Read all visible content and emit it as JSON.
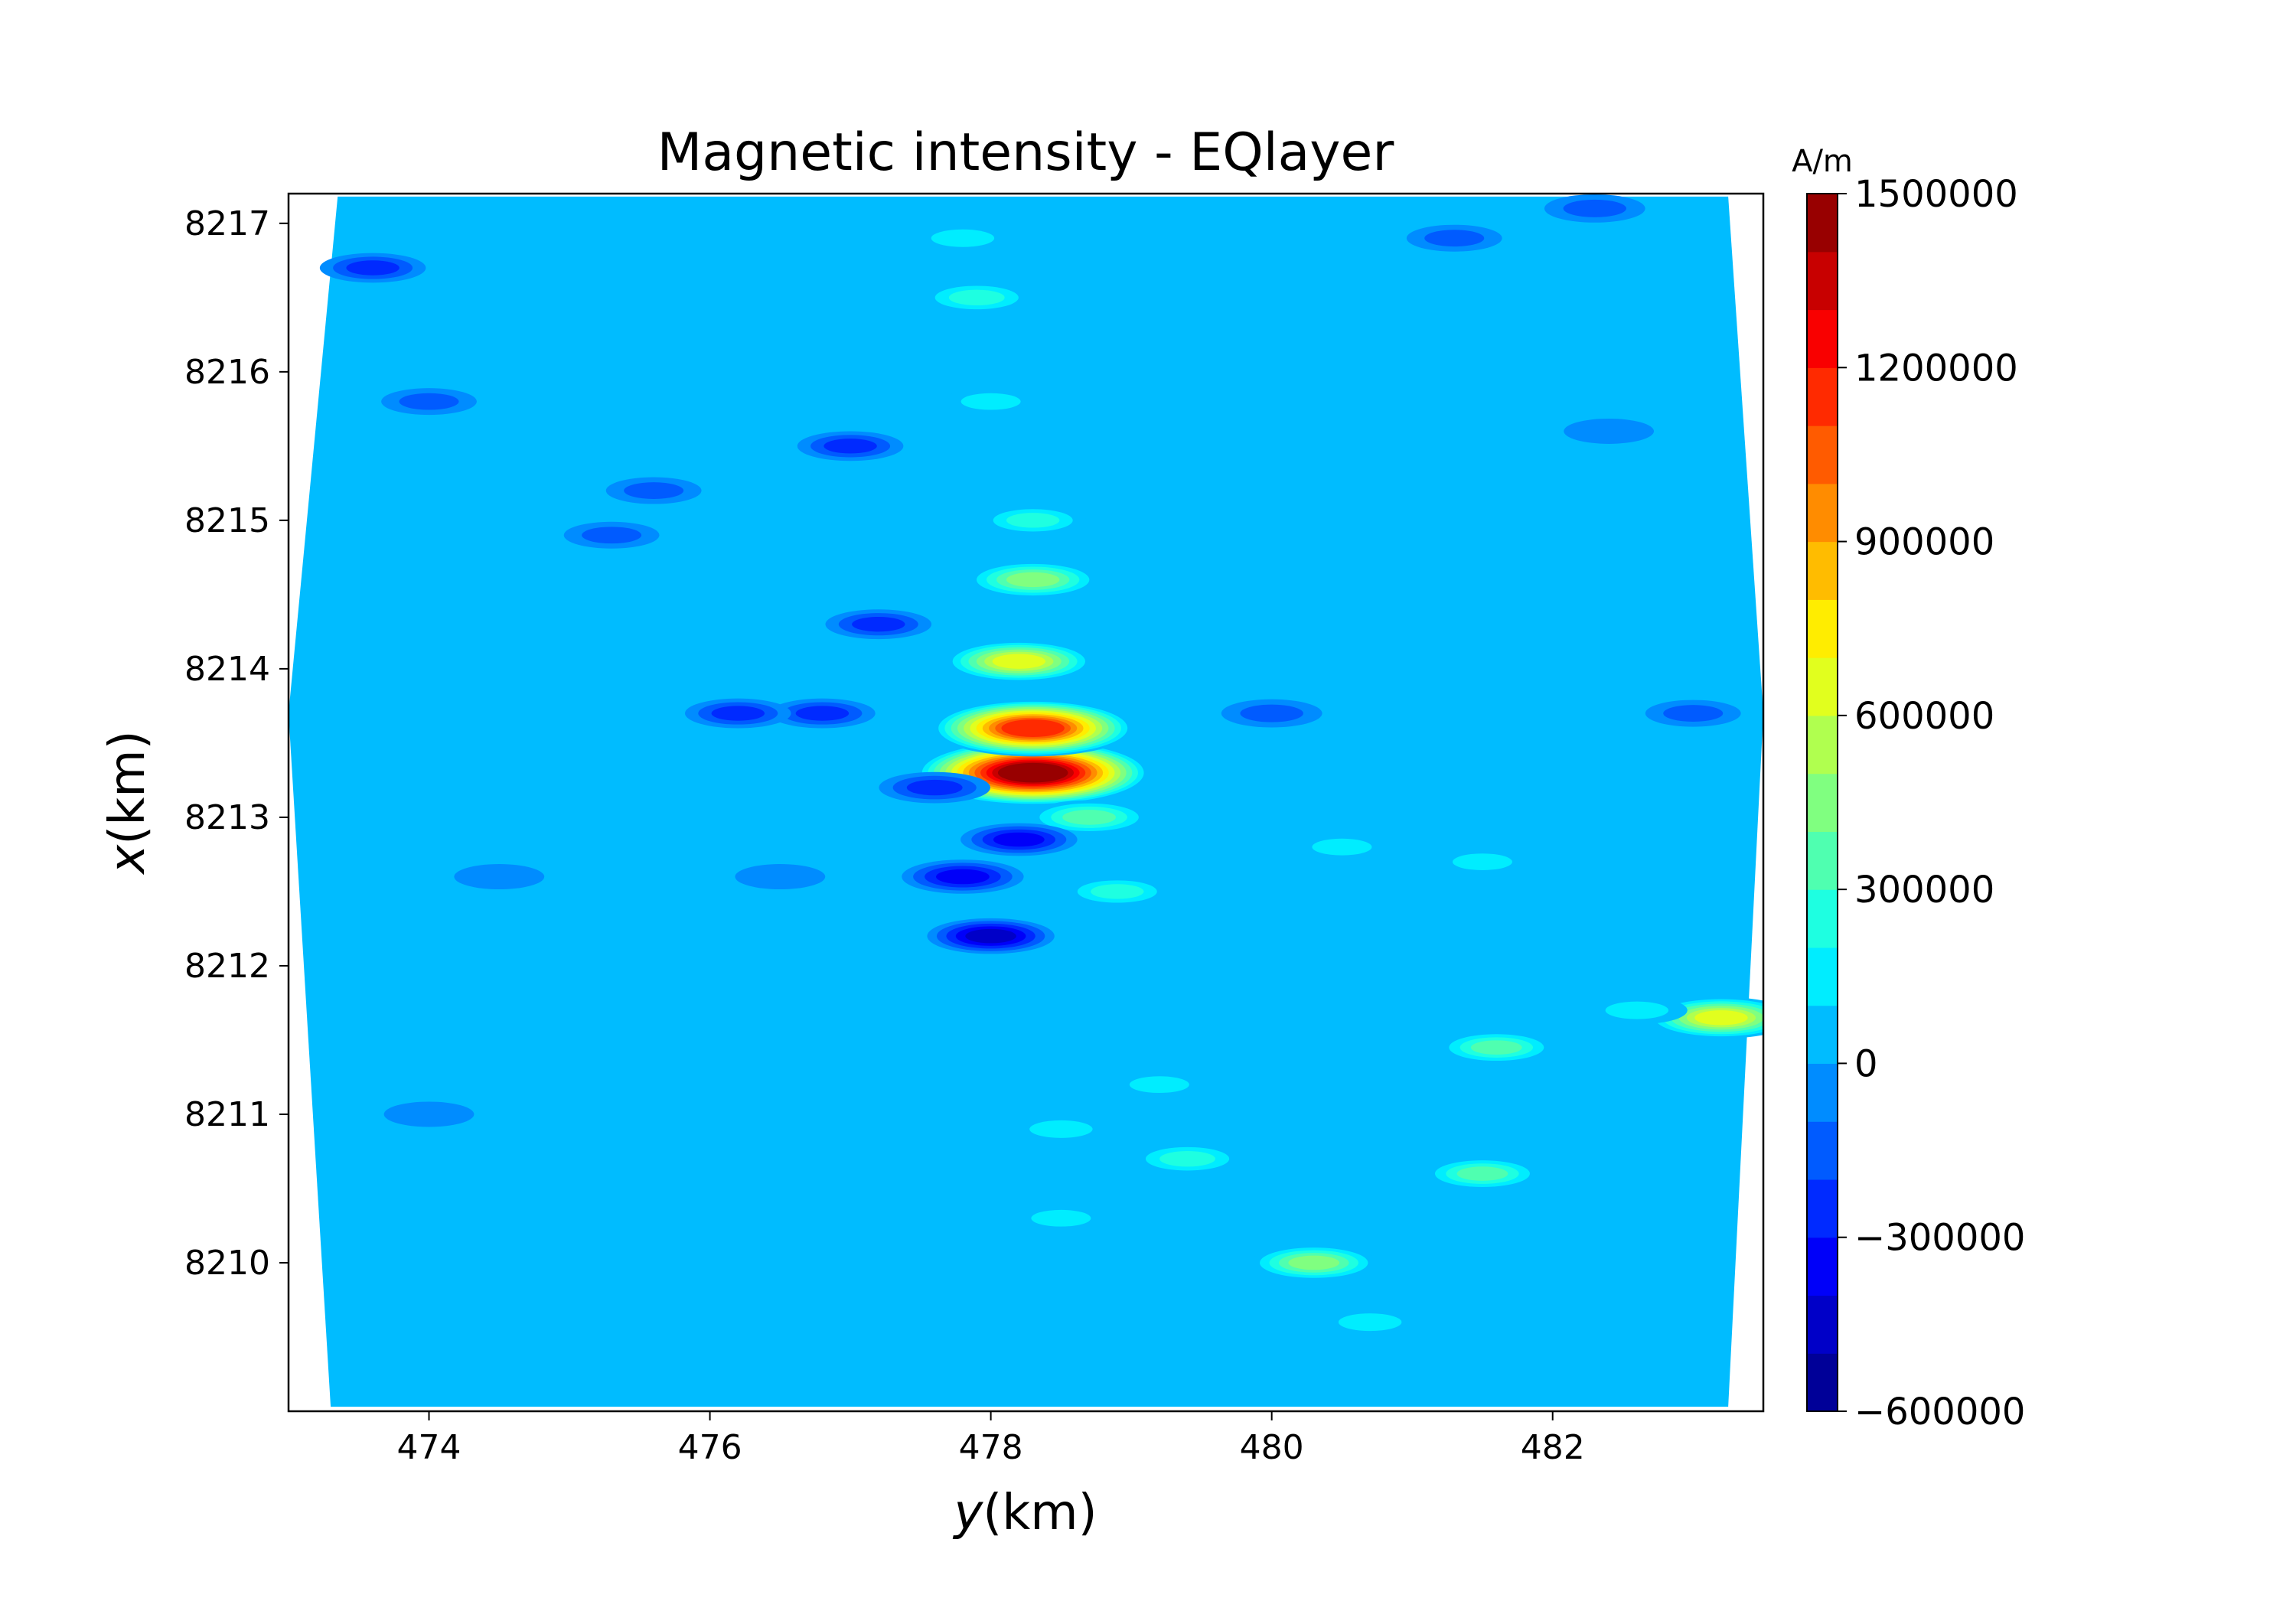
{
  "chart_data": {
    "type": "heatmap",
    "title": "Magnetic intensity - EQlayer",
    "xlabel_var": "y",
    "xlabel_unit": "(km)",
    "ylabel_var": "x",
    "ylabel_unit": "(km)",
    "xlim": [
      473.0,
      483.5
    ],
    "ylim": [
      8209.0,
      8217.2
    ],
    "xticks": [
      474,
      476,
      478,
      480,
      482
    ],
    "yticks": [
      8210,
      8211,
      8212,
      8213,
      8214,
      8215,
      8216,
      8217
    ],
    "colorbar": {
      "unit": "A/m",
      "range": [
        -600000,
        1500000
      ],
      "level_step": 100000,
      "ticks": [
        -600000,
        -300000,
        0,
        300000,
        600000,
        900000,
        1200000,
        1500000
      ],
      "tick_labels": [
        "−600000",
        "−300000",
        "0",
        "300000",
        "600000",
        "900000",
        "1200000",
        "1500000"
      ],
      "colormap": "jet"
    },
    "background_value": 0,
    "grid": false,
    "features": [
      {
        "y": 478.3,
        "x": 8213.3,
        "value": 1450000
      },
      {
        "y": 478.3,
        "x": 8213.6,
        "value": 1150000
      },
      {
        "y": 478.2,
        "x": 8214.05,
        "value": 650000
      },
      {
        "y": 478.3,
        "x": 8214.6,
        "value": 500000
      },
      {
        "y": 478.3,
        "x": 8215.0,
        "value": 250000
      },
      {
        "y": 478.0,
        "x": 8215.8,
        "value": 150000
      },
      {
        "y": 477.9,
        "x": 8216.5,
        "value": 300000
      },
      {
        "y": 477.8,
        "x": 8216.9,
        "value": 200000
      },
      {
        "y": 478.7,
        "x": 8213.0,
        "value": 400000
      },
      {
        "y": 478.9,
        "x": 8212.5,
        "value": 250000
      },
      {
        "y": 483.2,
        "x": 8211.65,
        "value": 650000
      },
      {
        "y": 482.6,
        "x": 8211.7,
        "value": 200000
      },
      {
        "y": 481.6,
        "x": 8211.45,
        "value": 350000
      },
      {
        "y": 480.3,
        "x": 8210.0,
        "value": 450000
      },
      {
        "y": 480.7,
        "x": 8209.6,
        "value": 200000
      },
      {
        "y": 481.5,
        "x": 8210.6,
        "value": 350000
      },
      {
        "y": 479.4,
        "x": 8210.7,
        "value": 300000
      },
      {
        "y": 478.5,
        "x": 8210.9,
        "value": 200000
      },
      {
        "y": 479.2,
        "x": 8211.2,
        "value": 150000
      },
      {
        "y": 478.5,
        "x": 8210.3,
        "value": 150000
      },
      {
        "y": 481.5,
        "x": 8212.7,
        "value": 150000
      },
      {
        "y": 480.5,
        "x": 8212.8,
        "value": 150000
      },
      {
        "y": 478.0,
        "x": 8212.2,
        "value": -450000
      },
      {
        "y": 477.8,
        "x": 8212.6,
        "value": -400000
      },
      {
        "y": 478.2,
        "x": 8212.85,
        "value": -350000
      },
      {
        "y": 477.6,
        "x": 8213.2,
        "value": -300000
      },
      {
        "y": 476.8,
        "x": 8213.7,
        "value": -250000
      },
      {
        "y": 477.2,
        "x": 8214.3,
        "value": -250000
      },
      {
        "y": 476.2,
        "x": 8213.7,
        "value": -250000
      },
      {
        "y": 480.0,
        "x": 8213.7,
        "value": -200000
      },
      {
        "y": 477.0,
        "x": 8215.5,
        "value": -250000
      },
      {
        "y": 475.3,
        "x": 8214.9,
        "value": -150000
      },
      {
        "y": 474.0,
        "x": 8215.8,
        "value": -150000
      },
      {
        "y": 473.6,
        "x": 8216.7,
        "value": -250000
      },
      {
        "y": 482.3,
        "x": 8217.1,
        "value": -200000
      },
      {
        "y": 481.3,
        "x": 8216.9,
        "value": -150000
      },
      {
        "y": 483.0,
        "x": 8213.7,
        "value": -150000
      },
      {
        "y": 475.6,
        "x": 8215.2,
        "value": -150000
      },
      {
        "y": 474.5,
        "x": 8212.6,
        "value": -100000
      },
      {
        "y": 474.0,
        "x": 8211.0,
        "value": -100000
      },
      {
        "y": 476.5,
        "x": 8212.6,
        "value": -100000
      },
      {
        "y": 482.4,
        "x": 8215.6,
        "value": -100000
      }
    ]
  }
}
